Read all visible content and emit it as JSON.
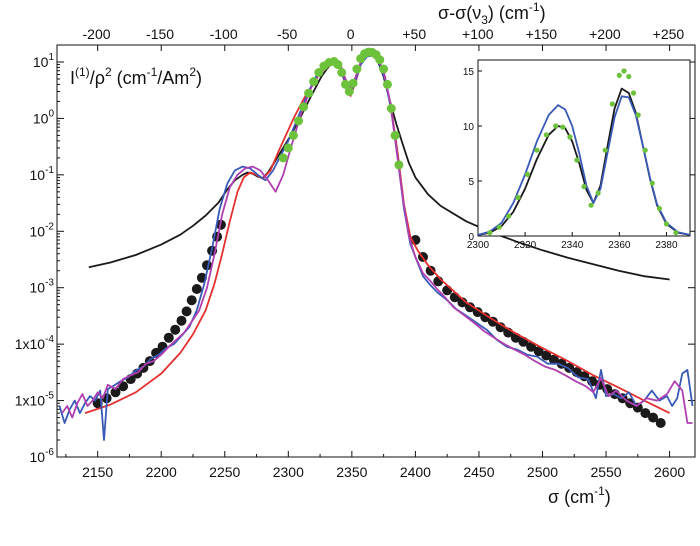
{
  "chart_data": [
    {
      "type": "line",
      "ylabel": "I(1)/ρ2 (cm-1/Am2)",
      "ylabel_parts": {
        "a": "I",
        "a_sup": "(1)",
        "b": "/ρ",
        "b_sup": "2",
        "c": " (cm",
        "c_sup": "-1",
        "d": "/Am",
        "d_sup": "2",
        "e": ")"
      },
      "xlabel": "σ (cm-1)",
      "xlabel_parts": {
        "a": "σ  (cm",
        "sup": "-1",
        "b": ")"
      },
      "top_xlabel": "σ-σ(ν3) (cm-1)",
      "top_xlabel_parts": {
        "a": "σ-σ(ν",
        "sub": "3",
        "b": ") (cm",
        "sup": "-1",
        "c": ")"
      },
      "x_scale": "linear",
      "xlim": [
        2118,
        2620
      ],
      "y_scale": "log",
      "ylim": [
        1e-06,
        20
      ],
      "x_ticks": [
        2150,
        2200,
        2250,
        2300,
        2350,
        2400,
        2450,
        2500,
        2550,
        2600
      ],
      "x_tick_labels": [
        "2150",
        "2200",
        "2250",
        "2300",
        "2350",
        "2400",
        "2450",
        "2500",
        "2550",
        "2600"
      ],
      "y_ticks": [
        1e-06,
        1e-05,
        0.0001,
        0.001,
        0.01,
        0.1,
        1,
        10
      ],
      "y_tick_labels": [
        {
          "base": "10",
          "exp": "-6"
        },
        {
          "base": "1x10",
          "exp": "-5"
        },
        {
          "base": "1x10",
          "exp": "-4"
        },
        {
          "base": "10",
          "exp": "-3"
        },
        {
          "base": "10",
          "exp": "-2"
        },
        {
          "base": "10",
          "exp": "-1"
        },
        {
          "base": "10",
          "exp": "0"
        },
        {
          "base": "10",
          "exp": "1"
        }
      ],
      "top_axis_offset": 2349.1,
      "top_ticks": [
        -200,
        -150,
        -100,
        -50,
        0,
        50,
        100,
        150,
        200,
        250
      ],
      "top_tick_labels": [
        "-200",
        "-150",
        "-100",
        "-50",
        "0",
        "+50",
        "+100",
        "+150",
        "+200",
        "+250"
      ],
      "grid": false,
      "legend": "none",
      "series": [
        {
          "color": "#1a1a1a",
          "style": "line",
          "x": [
            2143,
            2160,
            2180,
            2200,
            2215,
            2225,
            2235,
            2245,
            2252,
            2258,
            2264,
            2268,
            2272,
            2276,
            2280,
            2284,
            2290,
            2296,
            2302,
            2310,
            2318,
            2326,
            2332,
            2337,
            2341,
            2345,
            2349,
            2353,
            2357,
            2361,
            2365,
            2370,
            2375,
            2380,
            2385,
            2390,
            2395,
            2400,
            2410,
            2420,
            2440,
            2460,
            2480,
            2500,
            2520,
            2540,
            2560,
            2580,
            2600
          ],
          "y": [
            0.0023,
            0.0028,
            0.0038,
            0.0058,
            0.0087,
            0.0125,
            0.019,
            0.032,
            0.055,
            0.08,
            0.1,
            0.11,
            0.105,
            0.093,
            0.088,
            0.11,
            0.18,
            0.3,
            0.5,
            1.1,
            2.5,
            5.5,
            8.5,
            10.0,
            8.0,
            4.5,
            3.0,
            5.0,
            9.5,
            12.5,
            13.5,
            11.0,
            5.5,
            2.0,
            0.8,
            0.35,
            0.16,
            0.09,
            0.045,
            0.028,
            0.015,
            0.0095,
            0.0065,
            0.0046,
            0.0034,
            0.0026,
            0.002,
            0.0016,
            0.0014
          ]
        },
        {
          "color": "#1a1a1a",
          "style": "markers",
          "x": [
            2150,
            2157,
            2164,
            2170,
            2176,
            2181,
            2186,
            2191,
            2196,
            2201,
            2206,
            2211,
            2216,
            2220,
            2224,
            2228,
            2232,
            2236,
            2240,
            2244,
            2247,
            2400,
            2406,
            2412,
            2418,
            2425,
            2431,
            2437,
            2443,
            2449,
            2455,
            2461,
            2467,
            2473,
            2479,
            2485,
            2491,
            2497,
            2503,
            2509,
            2515,
            2521,
            2527,
            2533,
            2539,
            2545,
            2551,
            2557,
            2563,
            2569,
            2575,
            2581,
            2587,
            2593
          ],
          "y": [
            9e-06,
            1.1e-05,
            1.4e-05,
            1.8e-05,
            2.4e-05,
            3e-05,
            3.8e-05,
            5e-05,
            7e-05,
            9e-05,
            0.00013,
            0.00018,
            0.00026,
            0.00038,
            0.0006,
            0.00095,
            0.0015,
            0.0025,
            0.0045,
            0.008,
            0.013,
            0.007,
            0.0035,
            0.002,
            0.0013,
            0.0009,
            0.00068,
            0.00055,
            0.00045,
            0.00037,
            0.0003,
            0.00025,
            0.0002,
            0.00016,
            0.00013,
            0.00011,
            9e-05,
            7.5e-05,
            6.3e-05,
            5.3e-05,
            4.5e-05,
            3.8e-05,
            3.2e-05,
            2.7e-05,
            2.2e-05,
            1.9e-05,
            1.6e-05,
            1.3e-05,
            1.1e-05,
            9e-06,
            7.5e-06,
            6e-06,
            5e-06,
            4e-06
          ]
        },
        {
          "color": "#e53030",
          "style": "line",
          "x": [
            2140,
            2160,
            2180,
            2200,
            2215,
            2225,
            2235,
            2242,
            2248,
            2254,
            2260,
            2265,
            2270,
            2275,
            2280,
            2286,
            2292,
            2298,
            2305,
            2313,
            2322,
            2330,
            2336,
            2341,
            2345,
            2349,
            2353,
            2357,
            2362,
            2366,
            2371,
            2376,
            2381,
            2386,
            2391,
            2396,
            2402,
            2410,
            2420,
            2440,
            2460,
            2480,
            2500,
            2520,
            2540,
            2560,
            2580,
            2600
          ],
          "y": [
            6e-06,
            8.5e-06,
            1.4e-05,
            3e-05,
            7e-05,
            0.00015,
            0.0004,
            0.0012,
            0.004,
            0.015,
            0.05,
            0.09,
            0.11,
            0.1,
            0.085,
            0.12,
            0.25,
            0.5,
            1.1,
            2.4,
            5.0,
            8.5,
            10.0,
            7.5,
            4.0,
            2.5,
            4.5,
            9.0,
            13.0,
            14.0,
            11.5,
            5.5,
            1.5,
            0.25,
            0.03,
            0.008,
            0.0045,
            0.0025,
            0.0014,
            0.00055,
            0.00028,
            0.00015,
            8.5e-05,
            5e-05,
            2.8e-05,
            1.7e-05,
            1e-05,
            6e-06
          ]
        },
        {
          "color": "#3a5ab8",
          "style": "line",
          "x": [
            2120,
            2124,
            2128,
            2132,
            2136,
            2140,
            2144,
            2148,
            2152,
            2155,
            2158,
            2162,
            2168,
            2174,
            2180,
            2186,
            2192,
            2198,
            2204,
            2210,
            2216,
            2222,
            2228,
            2234,
            2240,
            2246,
            2252,
            2258,
            2264,
            2270,
            2276,
            2282,
            2288,
            2294,
            2300,
            2308,
            2316,
            2324,
            2330,
            2336,
            2341,
            2345,
            2349,
            2353,
            2357,
            2362,
            2366,
            2371,
            2376,
            2381,
            2386,
            2391,
            2396,
            2400,
            2406,
            2412,
            2418,
            2425,
            2432,
            2440,
            2448,
            2456,
            2464,
            2472,
            2480,
            2488,
            2496,
            2504,
            2512,
            2520,
            2528,
            2536,
            2542,
            2546,
            2550,
            2556,
            2562,
            2568,
            2574,
            2580,
            2586,
            2592,
            2598,
            2602,
            2606,
            2610,
            2614,
            2618
          ],
          "y": [
            8e-06,
            4e-06,
            7e-06,
            1e-05,
            6e-06,
            9e-06,
            1.2e-05,
            1e-05,
            1.5e-05,
            2e-06,
            1.6e-05,
            1.8e-05,
            2.2e-05,
            2.6e-05,
            3.4e-05,
            4e-05,
            5.5e-05,
            6.5e-05,
            8.5e-05,
            0.0001,
            0.00014,
            0.0002,
            0.0004,
            0.0012,
            0.005,
            0.025,
            0.07,
            0.12,
            0.14,
            0.13,
            0.1,
            0.08,
            0.12,
            0.22,
            0.4,
            1.1,
            3.0,
            7.0,
            9.5,
            11.0,
            8.0,
            4.2,
            2.8,
            4.8,
            9.0,
            12.5,
            13.0,
            10.5,
            5.0,
            1.4,
            0.2,
            0.025,
            0.006,
            0.0035,
            0.0016,
            0.0011,
            0.0008,
            0.0006,
            0.00042,
            0.00032,
            0.00024,
            0.00018,
            0.00012,
            9e-05,
            8e-05,
            6.5e-05,
            6e-05,
            4.5e-05,
            4.5e-05,
            3.8e-05,
            2.6e-05,
            2.4e-05,
            1.1e-05,
            3.5e-05,
            1.2e-05,
            1.3e-05,
            1.1e-05,
            1.4e-05,
            8e-06,
            1e-05,
            1.5e-05,
            1e-05,
            1.2e-05,
            8e-06,
            1.1e-05,
            3e-05,
            3.5e-05,
            8e-06
          ]
        },
        {
          "color": "#b040b0",
          "style": "line",
          "x": [
            2122,
            2126,
            2130,
            2134,
            2138,
            2142,
            2146,
            2150,
            2154,
            2158,
            2164,
            2170,
            2176,
            2182,
            2188,
            2194,
            2200,
            2206,
            2212,
            2218,
            2224,
            2230,
            2236,
            2242,
            2248,
            2254,
            2260,
            2266,
            2272,
            2278,
            2284,
            2290,
            2296,
            2302,
            2310,
            2318,
            2326,
            2332,
            2337,
            2341,
            2345,
            2349,
            2353,
            2357,
            2361,
            2365,
            2370,
            2375,
            2380,
            2385,
            2390,
            2395,
            2400,
            2406,
            2412,
            2418,
            2424,
            2430,
            2438,
            2446,
            2454,
            2462,
            2470,
            2478,
            2486,
            2494,
            2502,
            2510,
            2518,
            2526,
            2534,
            2540,
            2546,
            2552,
            2558,
            2566,
            2574,
            2582,
            2590,
            2598,
            2604,
            2610,
            2614,
            2618
          ],
          "y": [
            6e-06,
            8e-06,
            5e-06,
            9e-06,
            1.3e-05,
            8e-06,
            1e-05,
            1.4e-05,
            1.1e-05,
            1.9e-05,
            1.6e-05,
            2.4e-05,
            2.8e-05,
            3.2e-05,
            4.5e-05,
            5e-05,
            6.5e-05,
            9e-05,
            0.00012,
            0.00016,
            0.00025,
            0.0004,
            0.001,
            0.004,
            0.02,
            0.06,
            0.1,
            0.13,
            0.14,
            0.12,
            0.08,
            0.05,
            0.1,
            0.3,
            1.2,
            3.5,
            7.0,
            9.0,
            10.5,
            9.0,
            5.0,
            3.3,
            5.5,
            10.0,
            13.5,
            14.0,
            12.0,
            7.0,
            2.0,
            0.3,
            0.04,
            0.008,
            0.0035,
            0.0018,
            0.0013,
            0.0009,
            0.00065,
            0.00045,
            0.00033,
            0.00024,
            0.00017,
            0.00013,
            0.0001,
            8e-05,
            6.5e-05,
            5e-05,
            4e-05,
            3.5e-05,
            2.8e-05,
            2.2e-05,
            1.8e-05,
            1.4e-05,
            2.5e-05,
            1.2e-05,
            1.5e-05,
            1e-05,
            8e-06,
            1.1e-05,
            1e-05,
            1.3e-05,
            2.2e-05,
            1.5e-05,
            4e-06,
            4e-06
          ]
        },
        {
          "color": "#6cc23a",
          "style": "markers",
          "x": [
            2296,
            2300,
            2304,
            2308,
            2312,
            2316,
            2320,
            2324,
            2328,
            2332,
            2336,
            2339,
            2342,
            2345,
            2348,
            2351,
            2354,
            2357,
            2360,
            2363,
            2366,
            2369,
            2372,
            2375,
            2378,
            2381,
            2384,
            2387
          ],
          "y": [
            0.2,
            0.3,
            0.5,
            0.9,
            1.6,
            2.8,
            4.5,
            6.5,
            8.5,
            9.8,
            10.2,
            9.0,
            6.5,
            4.0,
            3.0,
            4.2,
            7.5,
            11.5,
            14.0,
            15.0,
            14.8,
            13.5,
            11.0,
            7.5,
            4.0,
            1.5,
            0.5,
            0.15
          ]
        }
      ]
    },
    {
      "type": "line",
      "xlim": [
        2300,
        2390
      ],
      "ylim": [
        0,
        16
      ],
      "x_ticks": [
        2300,
        2320,
        2340,
        2360,
        2380
      ],
      "x_tick_labels": [
        "2300",
        "2320",
        "2340",
        "2360",
        "2380"
      ],
      "y_ticks": [
        0,
        5,
        10,
        15
      ],
      "y_tick_labels": [
        "0",
        "5",
        "10",
        "15"
      ],
      "grid": false,
      "legend": "none",
      "series": [
        {
          "color": "#1a1a1a",
          "style": "line",
          "x": [
            2300,
            2305,
            2310,
            2315,
            2320,
            2325,
            2330,
            2334,
            2337,
            2340,
            2343,
            2346,
            2349,
            2352,
            2355,
            2358,
            2361,
            2364,
            2367,
            2370,
            2373,
            2376,
            2380,
            2385,
            2390
          ],
          "y": [
            0.1,
            0.3,
            0.9,
            2.2,
            4.3,
            7.0,
            9.2,
            10.0,
            9.8,
            8.6,
            6.6,
            4.2,
            3.0,
            4.6,
            8.2,
            11.6,
            13.4,
            13.0,
            11.2,
            8.2,
            5.2,
            2.8,
            1.1,
            0.3,
            0.1
          ]
        },
        {
          "color": "#3a5ab8",
          "style": "line",
          "x": [
            2300,
            2305,
            2310,
            2315,
            2320,
            2325,
            2330,
            2334,
            2337,
            2340,
            2343,
            2346,
            2349,
            2352,
            2355,
            2358,
            2361,
            2364,
            2367,
            2370,
            2373,
            2376,
            2380,
            2385,
            2390
          ],
          "y": [
            0.1,
            0.4,
            1.2,
            3.0,
            5.6,
            8.6,
            11.0,
            11.9,
            11.5,
            10.0,
            7.5,
            4.6,
            3.0,
            4.3,
            7.6,
            10.8,
            12.7,
            12.6,
            11.0,
            8.2,
            5.3,
            2.9,
            1.2,
            0.35,
            0.1
          ]
        },
        {
          "color": "#6cc23a",
          "style": "markers",
          "x": [
            2305,
            2309,
            2313,
            2317,
            2321,
            2325,
            2329,
            2333,
            2336,
            2339,
            2342,
            2345,
            2348,
            2351,
            2354,
            2357,
            2360,
            2362,
            2364,
            2366,
            2368,
            2371,
            2374,
            2377,
            2380,
            2384
          ],
          "y": [
            0.3,
            0.8,
            1.8,
            3.5,
            5.6,
            7.8,
            9.2,
            10.0,
            9.9,
            9.0,
            6.9,
            4.5,
            2.8,
            3.9,
            7.8,
            12.0,
            14.6,
            15.0,
            14.5,
            13.0,
            11.0,
            7.8,
            4.8,
            2.5,
            1.1,
            0.3
          ]
        }
      ]
    }
  ]
}
